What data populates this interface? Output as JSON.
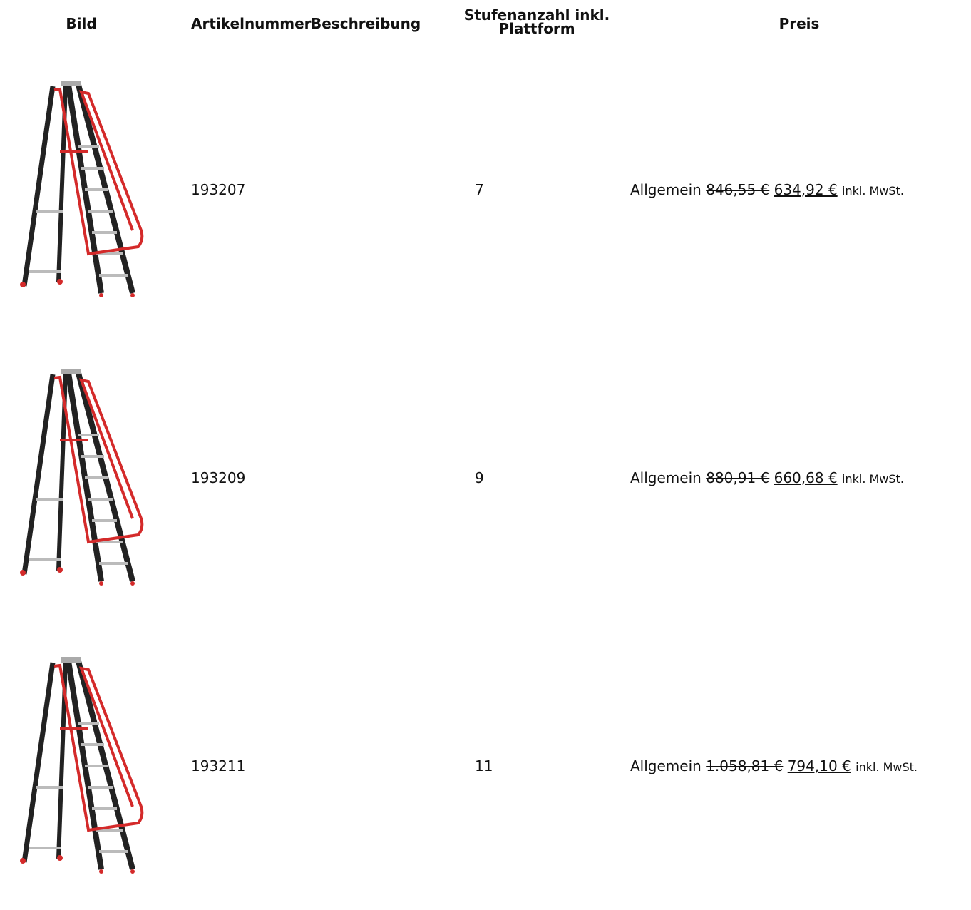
{
  "table": {
    "headers": [
      "Bild",
      "Artikelnummer",
      "Beschreibung",
      "Stufenanzahl inkl. Plattform",
      "Preis"
    ],
    "rows": [
      {
        "article": "193207",
        "steps": 7,
        "price_group": "Allgemein",
        "old_price": "846,55 €",
        "new_price": "634,92 €",
        "tax_note": "inkl. MwSt."
      },
      {
        "article": "193209",
        "steps": 9,
        "price_group": "Allgemein",
        "old_price": "880,91 €",
        "new_price": "660,68 €",
        "tax_note": "inkl. MwSt."
      },
      {
        "article": "193211",
        "steps": 11,
        "price_group": "Allgemein",
        "old_price": "1.058,81 €",
        "new_price": "794,10 €",
        "tax_note": "inkl. MwSt."
      }
    ]
  }
}
